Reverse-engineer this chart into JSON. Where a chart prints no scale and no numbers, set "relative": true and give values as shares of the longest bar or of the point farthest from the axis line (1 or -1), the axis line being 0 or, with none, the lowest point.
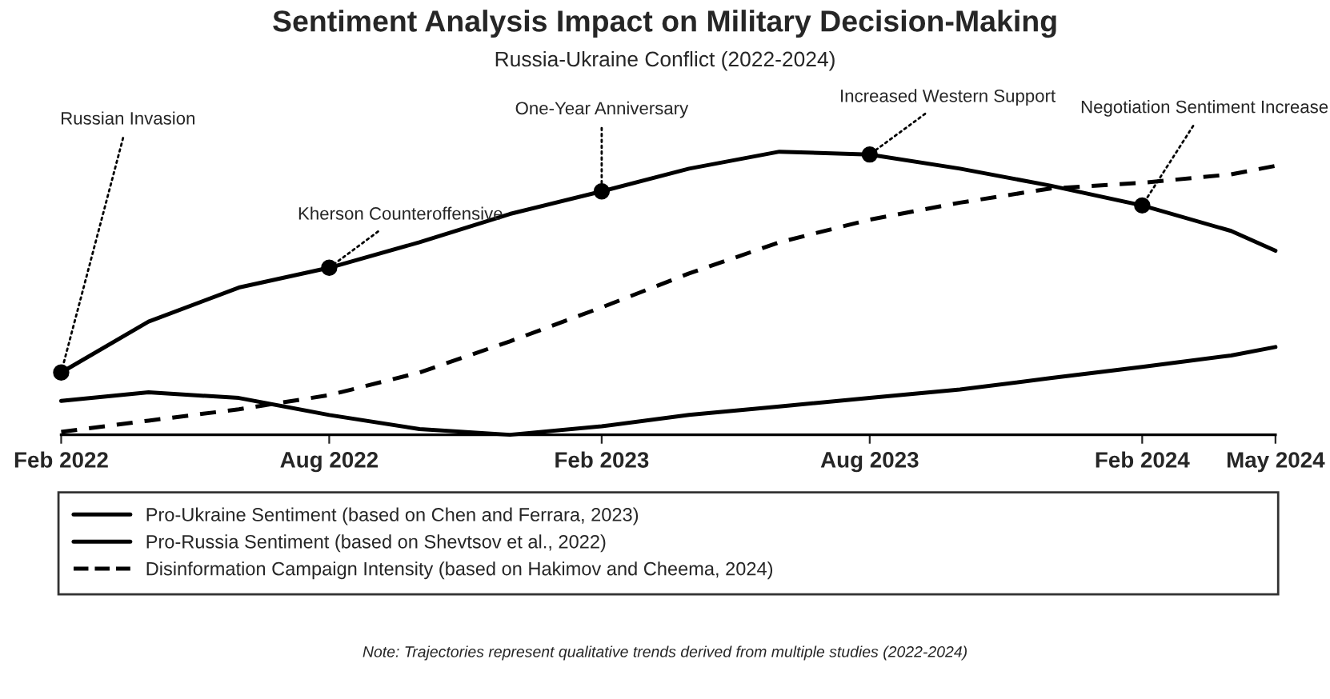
{
  "chart_data": {
    "type": "line",
    "title": "Sentiment Analysis Impact on Military Decision-Making",
    "subtitle": "Russia-Ukraine Conflict (2022-2024)",
    "relative": true,
    "x": [
      "2022-02",
      "2022-04",
      "2022-06",
      "2022-08",
      "2022-10",
      "2022-12",
      "2023-02",
      "2023-04",
      "2023-06",
      "2023-08",
      "2023-10",
      "2023-12",
      "2024-02",
      "2024-04",
      "2024-05"
    ],
    "xlim": [
      "2022-02",
      "2024-05"
    ],
    "xticks": [
      {
        "value": "2022-02",
        "label": "Feb 2022"
      },
      {
        "value": "2022-08",
        "label": "Aug 2022"
      },
      {
        "value": "2023-02",
        "label": "Feb 2023"
      },
      {
        "value": "2023-08",
        "label": "Aug 2023"
      },
      {
        "value": "2024-02",
        "label": "Feb 2024"
      },
      {
        "value": "2024-05",
        "label": "May 2024"
      }
    ],
    "series": [
      {
        "name": "Pro-Ukraine Sentiment (based on Chen and Ferrara, 2023)",
        "color": "#000000",
        "line_style": "solid",
        "values": [
          0.22,
          0.4,
          0.52,
          0.59,
          0.68,
          0.78,
          0.86,
          0.94,
          1.0,
          0.99,
          0.94,
          0.88,
          0.81,
          0.72,
          0.65
        ]
      },
      {
        "name": "Pro-Russia Sentiment (based on Shevtsov et al., 2022)",
        "color": "#000000",
        "line_style": "solid",
        "values": [
          0.12,
          0.15,
          0.13,
          0.07,
          0.02,
          0.0,
          0.03,
          0.07,
          0.1,
          0.13,
          0.16,
          0.2,
          0.24,
          0.28,
          0.31
        ]
      },
      {
        "name": "Disinformation Campaign Intensity (based on Hakimov and Cheema, 2024)",
        "color": "#000000",
        "line_style": "dashed",
        "values": [
          0.01,
          0.05,
          0.09,
          0.14,
          0.22,
          0.33,
          0.45,
          0.57,
          0.68,
          0.76,
          0.82,
          0.87,
          0.89,
          0.92,
          0.95
        ]
      },
      {
        "type": "scatter",
        "color": "#000000",
        "marker": "circle",
        "x": [
          "2022-02",
          "2022-08",
          "2023-02",
          "2023-08",
          "2024-02"
        ],
        "values": [
          0.22,
          0.59,
          0.86,
          0.99,
          0.81
        ]
      }
    ],
    "annotations": [
      {
        "text": "Russian Invasion",
        "x": "2022-02",
        "y": 0.22
      },
      {
        "text": "Kherson Counteroffensive",
        "x": "2022-08",
        "y": 0.59
      },
      {
        "text": "One-Year Anniversary",
        "x": "2023-02",
        "y": 0.86
      },
      {
        "text": "Increased Western Support",
        "x": "2023-08",
        "y": 0.99
      },
      {
        "text": "Negotiation Sentiment Increase",
        "x": "2024-02",
        "y": 0.81
      },
      "Note: Trajectories represent qualitative trends derived from multiple studies (2022-2024)"
    ],
    "legend": "bottom",
    "grid": false
  }
}
